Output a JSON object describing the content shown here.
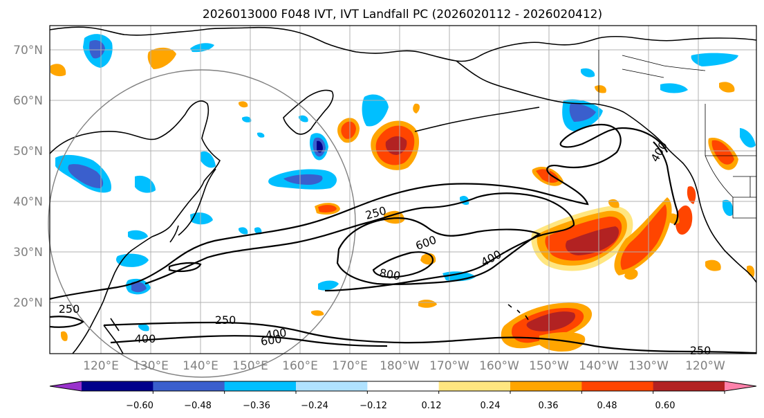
{
  "title": "2026013000 F048 IVT, IVT Landfall PC (2026020112 - 2026020412)",
  "lat_labels": [
    "70°N",
    "60°N",
    "50°N",
    "40°N",
    "30°N",
    "20°N"
  ],
  "lon_labels": [
    "120°E",
    "130°E",
    "140°E",
    "150°E",
    "160°E",
    "170°E",
    "180°W",
    "170°W",
    "160°W",
    "150°W",
    "140°W",
    "130°W",
    "120°W"
  ],
  "colorbar": {
    "ticks": [
      "−0.60",
      "−0.48",
      "−0.36",
      "−0.24",
      "−0.12",
      "0.12",
      "0.24",
      "0.36",
      "0.48",
      "0.60"
    ],
    "colors": [
      "#9932cc",
      "#00008b",
      "#3a5fcd",
      "#00bfff",
      "#b0e2ff",
      "#ffffff",
      "#ffe680",
      "#ffa500",
      "#ff4500",
      "#b22222",
      "#ff82ab"
    ]
  },
  "contour_labels": {
    "c250_west": "250",
    "c250_mid": "250",
    "c250_south": "250",
    "c250_se": "250",
    "c400_south": "400",
    "c400_se": "400",
    "c400_mid": "400",
    "c400_coast": "400",
    "c600_south": "600",
    "c600_mid": "600",
    "c800": "800"
  }
}
